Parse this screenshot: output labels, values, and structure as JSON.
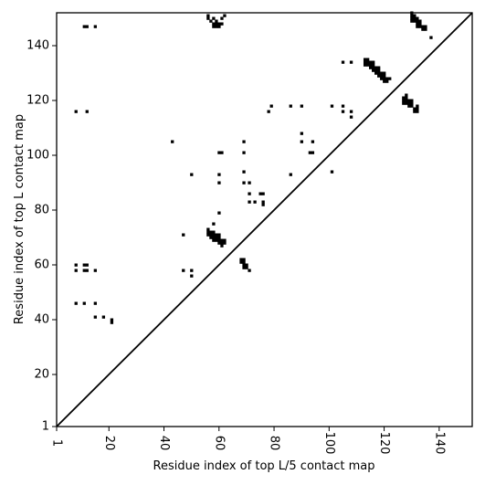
{
  "chart_data": {
    "type": "scatter",
    "xlabel": "Residue index of top L/5 contact map",
    "ylabel": "Residue index of top L contact map",
    "xlim": [
      1,
      152
    ],
    "ylim": [
      1,
      152
    ],
    "xticks": [
      1,
      20,
      40,
      60,
      80,
      100,
      120,
      140
    ],
    "yticks": [
      1,
      20,
      40,
      60,
      80,
      100,
      120,
      140
    ],
    "x_tick_labels": [
      "1",
      "20",
      "40",
      "60",
      "80",
      "100",
      "120",
      "140"
    ],
    "y_tick_labels": [
      "1",
      "20",
      "40",
      "60",
      "80",
      "100",
      "120",
      "140"
    ],
    "diagonal": true,
    "grid": false,
    "marker_color": "#000000",
    "points": [
      [
        11,
        147
      ],
      [
        12,
        147
      ],
      [
        15,
        147
      ],
      [
        8,
        116
      ],
      [
        12,
        116
      ],
      [
        8,
        60
      ],
      [
        8,
        58
      ],
      [
        11,
        60
      ],
      [
        12,
        60
      ],
      [
        11,
        58
      ],
      [
        12,
        58
      ],
      [
        15,
        58
      ],
      [
        8,
        46
      ],
      [
        11,
        46
      ],
      [
        15,
        46
      ],
      [
        15,
        41
      ],
      [
        18,
        41
      ],
      [
        21,
        40
      ],
      [
        21,
        39
      ],
      [
        43,
        105
      ],
      [
        50,
        93
      ],
      [
        47,
        71
      ],
      [
        47,
        58
      ],
      [
        50,
        58
      ],
      [
        50,
        56
      ],
      [
        56,
        151
      ],
      [
        56,
        150
      ],
      [
        57,
        149
      ],
      [
        58,
        150
      ],
      [
        58,
        148
      ],
      [
        58,
        147
      ],
      [
        59,
        149
      ],
      [
        59,
        148
      ],
      [
        59,
        147
      ],
      [
        60,
        148
      ],
      [
        60,
        147
      ],
      [
        61,
        150
      ],
      [
        61,
        148
      ],
      [
        62,
        151
      ],
      [
        60,
        101
      ],
      [
        61,
        101
      ],
      [
        60,
        93
      ],
      [
        60,
        90
      ],
      [
        58,
        75
      ],
      [
        60,
        79
      ],
      [
        56,
        73
      ],
      [
        56,
        72
      ],
      [
        57,
        72
      ],
      [
        57,
        71
      ],
      [
        58,
        72
      ],
      [
        58,
        71
      ],
      [
        58,
        70
      ],
      [
        59,
        71
      ],
      [
        59,
        70
      ],
      [
        59,
        69
      ],
      [
        60,
        71
      ],
      [
        60,
        70
      ],
      [
        60,
        69
      ],
      [
        60,
        68
      ],
      [
        61,
        69
      ],
      [
        61,
        68
      ],
      [
        61,
        67
      ],
      [
        62,
        69
      ],
      [
        62,
        68
      ],
      [
        56,
        71
      ],
      [
        57,
        70
      ],
      [
        58,
        69
      ],
      [
        68,
        62
      ],
      [
        69,
        62
      ],
      [
        69,
        61
      ],
      [
        69,
        60
      ],
      [
        69,
        59
      ],
      [
        70,
        60
      ],
      [
        70,
        59
      ],
      [
        71,
        58
      ],
      [
        68,
        61
      ],
      [
        69,
        105
      ],
      [
        69,
        101
      ],
      [
        69,
        94
      ],
      [
        69,
        90
      ],
      [
        71,
        90
      ],
      [
        71,
        86
      ],
      [
        71,
        83
      ],
      [
        73,
        83
      ],
      [
        75,
        86
      ],
      [
        76,
        86
      ],
      [
        76,
        83
      ],
      [
        76,
        82
      ],
      [
        78,
        116
      ],
      [
        79,
        118
      ],
      [
        86,
        118
      ],
      [
        90,
        118
      ],
      [
        86,
        93
      ],
      [
        90,
        108
      ],
      [
        90,
        105
      ],
      [
        93,
        101
      ],
      [
        94,
        101
      ],
      [
        94,
        105
      ],
      [
        101,
        94
      ],
      [
        101,
        118
      ],
      [
        105,
        118
      ],
      [
        105,
        116
      ],
      [
        108,
        116
      ],
      [
        108,
        114
      ],
      [
        105,
        134
      ],
      [
        108,
        134
      ],
      [
        113,
        135
      ],
      [
        113,
        134
      ],
      [
        113,
        133
      ],
      [
        114,
        135
      ],
      [
        114,
        134
      ],
      [
        114,
        133
      ],
      [
        115,
        134
      ],
      [
        115,
        133
      ],
      [
        115,
        132
      ],
      [
        116,
        134
      ],
      [
        116,
        133
      ],
      [
        116,
        132
      ],
      [
        116,
        131
      ],
      [
        117,
        132
      ],
      [
        117,
        131
      ],
      [
        117,
        130
      ],
      [
        118,
        132
      ],
      [
        118,
        131
      ],
      [
        118,
        130
      ],
      [
        118,
        129
      ],
      [
        119,
        130
      ],
      [
        119,
        129
      ],
      [
        119,
        128
      ],
      [
        120,
        130
      ],
      [
        120,
        129
      ],
      [
        120,
        128
      ],
      [
        120,
        127
      ],
      [
        121,
        128
      ],
      [
        121,
        127
      ],
      [
        122,
        128
      ],
      [
        127,
        121
      ],
      [
        127,
        120
      ],
      [
        127,
        119
      ],
      [
        128,
        122
      ],
      [
        128,
        121
      ],
      [
        128,
        120
      ],
      [
        128,
        119
      ],
      [
        129,
        120
      ],
      [
        129,
        119
      ],
      [
        129,
        118
      ],
      [
        130,
        120
      ],
      [
        130,
        119
      ],
      [
        130,
        118
      ],
      [
        131,
        117
      ],
      [
        131,
        116
      ],
      [
        132,
        118
      ],
      [
        132,
        117
      ],
      [
        132,
        116
      ],
      [
        130,
        152
      ],
      [
        130,
        151
      ],
      [
        130,
        150
      ],
      [
        130,
        149
      ],
      [
        131,
        151
      ],
      [
        131,
        150
      ],
      [
        131,
        149
      ],
      [
        132,
        150
      ],
      [
        132,
        149
      ],
      [
        132,
        148
      ],
      [
        132,
        147
      ],
      [
        133,
        149
      ],
      [
        133,
        148
      ],
      [
        133,
        147
      ],
      [
        134,
        147
      ],
      [
        134,
        146
      ],
      [
        135,
        147
      ],
      [
        135,
        146
      ],
      [
        137,
        143
      ]
    ]
  }
}
